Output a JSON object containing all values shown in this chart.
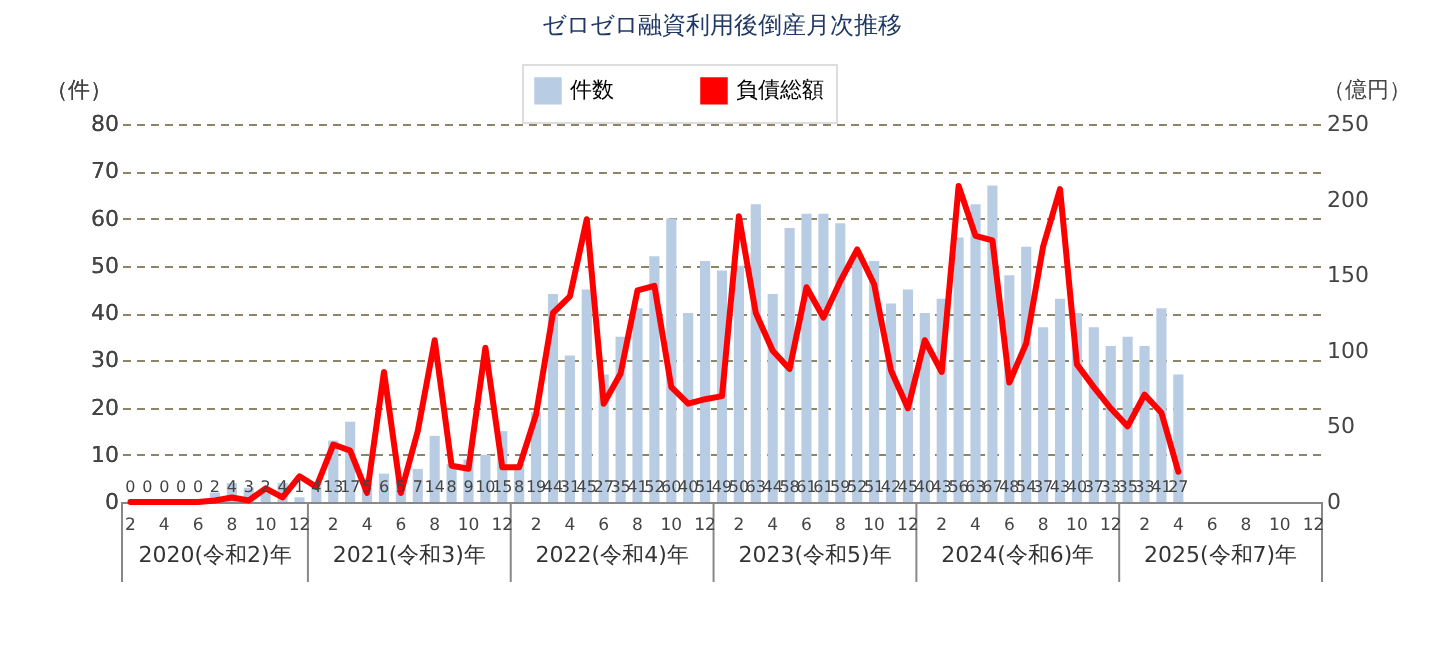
{
  "chart_data": {
    "type": "bar",
    "title": "ゼロゼロ融資利用後倒産月次推移",
    "ylabel": "（件）",
    "y2label": "（億円）",
    "categories": [
      "2",
      null,
      "4",
      null,
      "6",
      null,
      "8",
      null,
      "10",
      null,
      "12",
      null,
      "2",
      null,
      "4",
      null,
      "6",
      null,
      "8",
      null,
      "10",
      null,
      "12",
      null,
      "2",
      null,
      "4",
      null,
      "6",
      null,
      "8",
      null,
      "10",
      null,
      "12",
      null,
      "2",
      null,
      "4",
      null,
      "6",
      null,
      "8",
      null,
      "10",
      null,
      "12",
      null,
      "2",
      null,
      "4",
      null,
      "6",
      null,
      "8",
      null,
      "10",
      null,
      "12",
      null,
      "2",
      null,
      "4",
      null,
      "6",
      null,
      "8",
      null,
      "10",
      null,
      "12"
    ],
    "series": [
      {
        "name": "件数",
        "color": "#b8cce4",
        "values": [
          0,
          0,
          0,
          0,
          0,
          2,
          4,
          3,
          2,
          4,
          1,
          4,
          13,
          17,
          5,
          6,
          5,
          7,
          14,
          8,
          9,
          10,
          15,
          8,
          19,
          44,
          31,
          45,
          27,
          35,
          41,
          52,
          60,
          40,
          51,
          49,
          50,
          63,
          44,
          58,
          61,
          61,
          59,
          52,
          51,
          42,
          45,
          40,
          43,
          56,
          63,
          67,
          48,
          54,
          37,
          43,
          40,
          37,
          33,
          35,
          33,
          41,
          27,
          null,
          null,
          null,
          null,
          null,
          null,
          null,
          null
        ],
        "value_labels": [
          "0",
          "0",
          "0",
          "0",
          "0",
          "2",
          "4",
          "3",
          "2",
          "4",
          "1",
          "4",
          "13",
          "17",
          "5",
          "6",
          "5",
          "7",
          "14",
          "8",
          "9",
          "10",
          "15",
          "8",
          "19",
          "44",
          "31",
          "45",
          "27",
          "35",
          "41",
          "52",
          "60",
          "40",
          "51",
          "49",
          "50",
          "63",
          "44",
          "58",
          "61",
          "61",
          "59",
          "52",
          "51",
          "42",
          "45",
          "40",
          "43",
          "56",
          "63",
          "67",
          "48",
          "54",
          "37",
          "43",
          "40",
          "37",
          "33",
          "35",
          "33",
          "41",
          "27",
          null,
          null,
          null,
          null,
          null,
          null,
          null,
          null
        ]
      },
      {
        "name": "負債総額",
        "type": "line",
        "axis": "y2",
        "color": "#ff0000",
        "values": [
          0,
          0,
          0,
          0,
          0,
          1,
          3,
          1,
          9,
          3,
          17,
          10,
          38,
          34,
          6,
          86,
          6,
          47,
          107,
          24,
          22,
          102,
          23,
          23,
          58,
          125,
          136,
          187,
          65,
          85,
          140,
          143,
          76,
          65,
          68,
          70,
          189,
          125,
          100,
          88,
          142,
          122,
          146,
          167,
          144,
          87,
          62,
          107,
          86,
          209,
          176,
          173,
          79,
          105,
          169,
          207,
          91,
          76,
          62,
          50,
          71,
          59,
          20,
          null,
          null,
          null,
          null,
          null,
          null,
          null,
          null
        ]
      }
    ],
    "ylim": [
      0,
      80
    ],
    "yticks": [
      0,
      10,
      20,
      30,
      40,
      50,
      60,
      70,
      80
    ],
    "y2lim": [
      0,
      250
    ],
    "y2ticks": [
      0,
      50,
      100,
      150,
      200,
      250
    ],
    "grid": "y",
    "legend": "top",
    "line_style": "solid",
    "marker": "none",
    "annotations": [
      "2020(令和2)年",
      "2021(令和3)年",
      "2022(令和4)年",
      "2023(令和5)年",
      "2024(令和6)年",
      "2025(令和7)年"
    ]
  }
}
